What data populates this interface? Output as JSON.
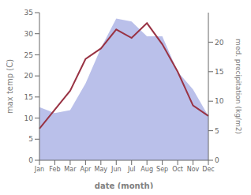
{
  "chart_data": {
    "type": "line",
    "categories": [
      "Jan",
      "Feb",
      "Mar",
      "Apr",
      "May",
      "Jun",
      "Jul",
      "Aug",
      "Sep",
      "Oct",
      "Nov",
      "Dec"
    ],
    "series": [
      {
        "type": "area",
        "color": "#b3b9e8",
        "axis": "y2",
        "values": [
          9.0,
          8.0,
          8.5,
          13.0,
          19.0,
          24.0,
          23.5,
          21.0,
          21.0,
          15.0,
          12.0,
          7.5
        ]
      },
      {
        "type": "line",
        "color": "#993344",
        "values": [
          7.5,
          12.0,
          16.5,
          24.0,
          26.5,
          31.0,
          29.0,
          32.5,
          27.5,
          21.0,
          13.0,
          10.5
        ]
      }
    ],
    "xlabel": "date (month)",
    "ylabel": "max temp (C)",
    "y2label": "med. precipitation (kg/m2)",
    "ylim": [
      0,
      35
    ],
    "yticks": [
      0,
      5,
      10,
      15,
      20,
      25,
      30,
      35
    ],
    "y2lim": [
      0,
      25
    ],
    "y2ticks": [
      0,
      5,
      10,
      15,
      20
    ],
    "grid": false
  }
}
